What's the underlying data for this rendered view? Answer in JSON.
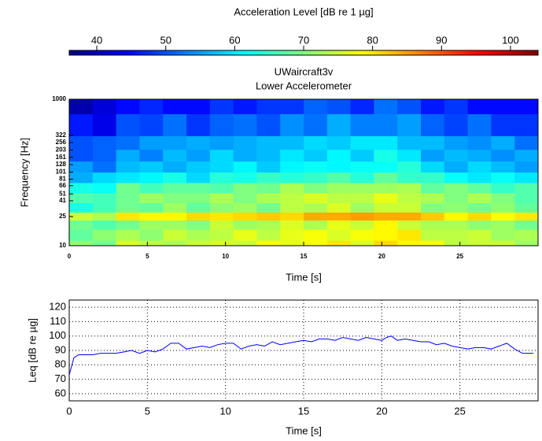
{
  "chart_data": [
    {
      "type": "heatmap",
      "title": [
        "UWaircraft3v",
        "Lower Accelerometer"
      ],
      "xlabel": "Time   [s]",
      "ylabel": "Frequency   [Hz]",
      "colormap": "jet",
      "colorbar": {
        "label": "Acceleration Level   [dB  re  1 µg]",
        "lim": [
          36,
          104
        ],
        "ticks": [
          40,
          50,
          60,
          70,
          80,
          90,
          100
        ]
      },
      "xlim": [
        0,
        30
      ],
      "xticks": [
        0,
        5,
        10,
        15,
        20,
        25
      ],
      "ylim": [
        10,
        1000
      ],
      "log_y": true,
      "yticks": [
        10,
        25,
        41,
        51,
        66,
        81,
        101,
        128,
        161,
        203,
        256,
        322,
        1000
      ],
      "x": [
        0.75,
        2.25,
        3.75,
        5.25,
        6.75,
        8.25,
        9.75,
        11.25,
        12.75,
        14.25,
        15.75,
        17.25,
        18.75,
        20.25,
        21.75,
        23.25,
        24.75,
        26.25,
        27.75,
        29.25
      ],
      "y": [
        10,
        14,
        20,
        25,
        33,
        45,
        62,
        85,
        120,
        170,
        250,
        400,
        1000
      ],
      "values": [
        [
          71,
          69,
          76,
          74,
          73,
          75,
          76,
          75,
          78,
          77,
          78,
          80,
          76,
          81,
          79,
          78,
          74,
          75,
          75,
          72
        ],
        [
          68,
          71,
          73,
          71,
          75,
          73,
          74,
          77,
          74,
          77,
          78,
          76,
          78,
          79,
          80,
          74,
          74,
          75,
          72,
          73
        ],
        [
          69,
          67,
          69,
          72,
          72,
          70,
          75,
          72,
          73,
          76,
          73,
          77,
          75,
          79,
          75,
          73,
          73,
          71,
          72,
          69
        ],
        [
          75,
          73,
          80,
          79,
          79,
          81,
          80,
          81,
          82,
          81,
          84,
          84,
          85,
          84,
          84,
          82,
          79,
          81,
          78,
          80
        ],
        [
          63,
          66,
          69,
          68,
          72,
          68,
          71,
          72,
          69,
          74,
          73,
          76,
          72,
          75,
          75,
          70,
          71,
          69,
          71,
          68
        ],
        [
          67,
          66,
          69,
          72,
          70,
          70,
          73,
          70,
          73,
          74,
          76,
          74,
          74,
          77,
          74,
          73,
          70,
          73,
          70,
          67
        ],
        [
          63,
          62,
          69,
          66,
          68,
          68,
          67,
          70,
          69,
          73,
          70,
          72,
          72,
          72,
          73,
          68,
          70,
          68,
          65,
          67
        ],
        [
          56,
          59,
          60,
          61,
          63,
          59,
          64,
          63,
          65,
          64,
          65,
          67,
          64,
          68,
          65,
          65,
          62,
          60,
          62,
          60
        ],
        [
          55,
          52,
          57,
          58,
          56,
          58,
          59,
          61,
          58,
          61,
          62,
          61,
          62,
          62,
          64,
          59,
          56,
          59,
          57,
          55
        ],
        [
          50,
          51,
          56,
          53,
          57,
          55,
          59,
          56,
          57,
          60,
          58,
          61,
          58,
          63,
          60,
          55,
          57,
          56,
          54,
          56
        ],
        [
          50,
          51,
          52,
          55,
          55,
          56,
          55,
          56,
          57,
          57,
          59,
          58,
          60,
          60,
          57,
          57,
          55,
          54,
          56,
          52
        ],
        [
          46,
          43,
          50,
          49,
          52,
          48,
          51,
          52,
          50,
          54,
          52,
          56,
          53,
          53,
          55,
          51,
          49,
          52,
          48,
          48
        ],
        [
          39,
          42,
          45,
          47,
          45,
          45,
          48,
          46,
          48,
          48,
          51,
          50,
          47,
          52,
          50,
          46,
          48,
          45,
          45,
          45
        ]
      ]
    },
    {
      "type": "line",
      "xlabel": "Time   [s]",
      "ylabel": "Leq  [dB re µg]",
      "xlim": [
        0,
        30
      ],
      "xticks": [
        0,
        5,
        10,
        15,
        20,
        25
      ],
      "ylim": [
        55,
        125
      ],
      "yticks": [
        60,
        70,
        80,
        90,
        100,
        110,
        120
      ],
      "grid": true,
      "grid_style": "dotted",
      "x": [
        0,
        0.3,
        0.6,
        1,
        1.5,
        2,
        2.5,
        3,
        3.5,
        4,
        4.5,
        5,
        5.5,
        6,
        6.5,
        7,
        7.5,
        8,
        8.5,
        9,
        9.5,
        10,
        10.5,
        11,
        11.5,
        12,
        12.5,
        13,
        13.5,
        14,
        14.5,
        15,
        15.5,
        16,
        16.5,
        17,
        17.5,
        18,
        18.5,
        19,
        19.5,
        20,
        20.3,
        20.6,
        21,
        21.5,
        22,
        22.5,
        23,
        23.5,
        24,
        24.5,
        25,
        25.5,
        26,
        26.5,
        27,
        27.5,
        28,
        28.5,
        29,
        29.7
      ],
      "series": [
        {
          "color": "#0000ff",
          "values": [
            73,
            85,
            87,
            87,
            87,
            88,
            88,
            88,
            89,
            90,
            88,
            90,
            89,
            91,
            95,
            95,
            91,
            92,
            93,
            92,
            94,
            95,
            95,
            91,
            93,
            94,
            93,
            96,
            94,
            95,
            96,
            97,
            96,
            98,
            98,
            97,
            99,
            98,
            97,
            99,
            98,
            97,
            99,
            100,
            97,
            98,
            97,
            96,
            96,
            94,
            95,
            93,
            92,
            91,
            92,
            92,
            91,
            93,
            95,
            91,
            88,
            88
          ]
        }
      ]
    }
  ]
}
